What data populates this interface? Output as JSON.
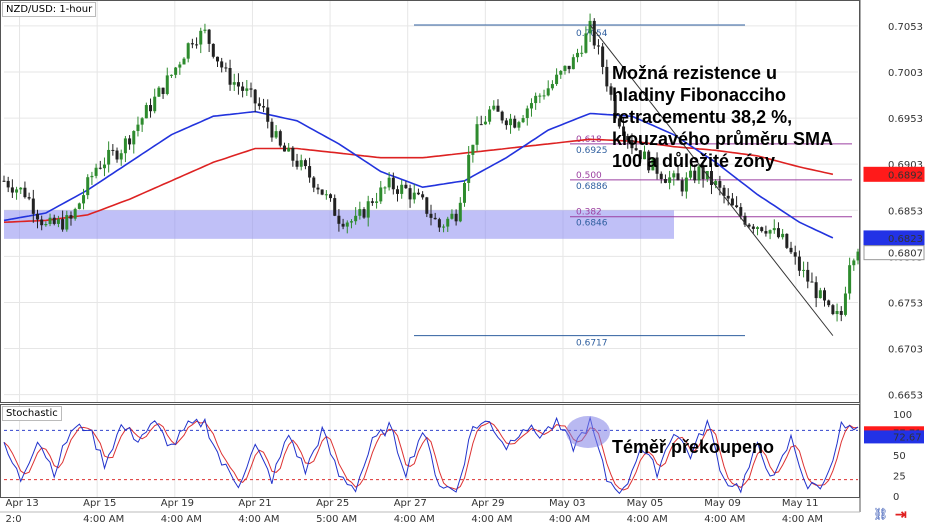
{
  "window": {
    "symbol_title": "NZD/USD: 1-hour",
    "stochastic_title": "Stochastic"
  },
  "annotations": {
    "resistance_lines": [
      "Možná rezistence u",
      "hladiny Fibonacciho",
      "retracementu 38,2 %,",
      "klouzavého průměru SMA",
      "100 a důležité zóny"
    ],
    "overbought": "Téměř překoupeno"
  },
  "colors": {
    "bull": "#2e8b2e",
    "bear": "#222222",
    "sma_blue": "#2233dd",
    "sma_red": "#dd2222",
    "zone": "#8c8cf0",
    "fib": "#2f5f9f",
    "fib_mid": "#9b3fa0",
    "stoch_k": "#2233cc",
    "stoch_d": "#dd3333",
    "price_tag_red": "#ff1a1a",
    "price_tag_blue": "#2232e6"
  },
  "chart_data": [
    {
      "type": "candlestick",
      "title": "NZD/USD: 1-hour",
      "ylim": [
        0.6645,
        0.708
      ],
      "y_ticks": [
        0.6653,
        0.6703,
        0.6753,
        0.6803,
        0.6853,
        0.6903,
        0.6953,
        0.7003,
        0.7053
      ],
      "date_labels": [
        "Apr 13",
        "Apr 15",
        "Apr 19",
        "Apr 21",
        "Apr 25",
        "Apr 27",
        "Apr 29",
        "May 03",
        "May 05",
        "May 09",
        "May 11"
      ],
      "time_labels": [
        "2:0",
        "4:00 AM",
        "4:00 AM",
        "4:00 AM",
        "5:00 AM",
        "4:00 AM",
        "4:00 AM",
        "4:00 AM",
        "4:00 AM",
        "4:00 AM",
        "4:00 AM"
      ],
      "price_path": [
        [
          0,
          0.6885
        ],
        [
          5,
          0.6872
        ],
        [
          10,
          0.6835
        ],
        [
          16,
          0.6842
        ],
        [
          22,
          0.69
        ],
        [
          28,
          0.692
        ],
        [
          34,
          0.696
        ],
        [
          40,
          0.7
        ],
        [
          45,
          0.704
        ],
        [
          48,
          0.7045
        ],
        [
          53,
          0.7
        ],
        [
          58,
          0.698
        ],
        [
          62,
          0.696
        ],
        [
          66,
          0.692
        ],
        [
          70,
          0.6905
        ],
        [
          75,
          0.688
        ],
        [
          80,
          0.6845
        ],
        [
          84,
          0.684
        ],
        [
          88,
          0.6865
        ],
        [
          92,
          0.688
        ],
        [
          96,
          0.6875
        ],
        [
          100,
          0.686
        ],
        [
          104,
          0.6835
        ],
        [
          108,
          0.685
        ],
        [
          112,
          0.693
        ],
        [
          116,
          0.696
        ],
        [
          122,
          0.695
        ],
        [
          126,
          0.697
        ],
        [
          131,
          0.699
        ],
        [
          136,
          0.7015
        ],
        [
          140,
          0.705
        ],
        [
          143,
          0.701
        ],
        [
          146,
          0.696
        ],
        [
          150,
          0.6925
        ],
        [
          154,
          0.6905
        ],
        [
          158,
          0.689
        ],
        [
          162,
          0.688
        ],
        [
          166,
          0.6895
        ],
        [
          170,
          0.688
        ],
        [
          174,
          0.6855
        ],
        [
          178,
          0.684
        ],
        [
          182,
          0.6835
        ],
        [
          186,
          0.682
        ],
        [
          190,
          0.679
        ],
        [
          194,
          0.6765
        ],
        [
          198,
          0.6735
        ],
        [
          200,
          0.674
        ],
        [
          202,
          0.68
        ],
        [
          204,
          0.6815
        ]
      ],
      "sma_100": [
        [
          0,
          0.6842
        ],
        [
          10,
          0.685
        ],
        [
          20,
          0.6875
        ],
        [
          30,
          0.6905
        ],
        [
          40,
          0.6935
        ],
        [
          50,
          0.6955
        ],
        [
          60,
          0.696
        ],
        [
          70,
          0.695
        ],
        [
          80,
          0.6925
        ],
        [
          90,
          0.6895
        ],
        [
          100,
          0.6878
        ],
        [
          110,
          0.6885
        ],
        [
          120,
          0.691
        ],
        [
          130,
          0.694
        ],
        [
          140,
          0.6958
        ],
        [
          150,
          0.6955
        ],
        [
          160,
          0.6935
        ],
        [
          170,
          0.6905
        ],
        [
          180,
          0.687
        ],
        [
          190,
          0.684
        ],
        [
          198,
          0.6823
        ]
      ],
      "sma_200": [
        [
          0,
          0.684
        ],
        [
          10,
          0.6842
        ],
        [
          20,
          0.6848
        ],
        [
          30,
          0.6865
        ],
        [
          40,
          0.6885
        ],
        [
          50,
          0.6905
        ],
        [
          60,
          0.692
        ],
        [
          70,
          0.692
        ],
        [
          80,
          0.6915
        ],
        [
          90,
          0.691
        ],
        [
          100,
          0.691
        ],
        [
          110,
          0.6915
        ],
        [
          120,
          0.692
        ],
        [
          130,
          0.6925
        ],
        [
          140,
          0.693
        ],
        [
          150,
          0.6928
        ],
        [
          160,
          0.6922
        ],
        [
          170,
          0.6918
        ],
        [
          180,
          0.6912
        ],
        [
          190,
          0.69
        ],
        [
          198,
          0.6892
        ]
      ],
      "zone": {
        "low": 0.6822,
        "high": 0.6853
      },
      "fibonacci": [
        {
          "ratio": "",
          "value": "0.7054",
          "price": 0.7054
        },
        {
          "ratio": "0.618",
          "value": "0.6925",
          "price": 0.6925
        },
        {
          "ratio": "0.500",
          "value": "0.6886",
          "price": 0.6886
        },
        {
          "ratio": "0.382",
          "value": "0.6846",
          "price": 0.6846
        },
        {
          "ratio": "",
          "value": "0.6717",
          "price": 0.6717
        }
      ],
      "price_tags": [
        {
          "value": "0.6892",
          "price": 0.6892,
          "style": "red"
        },
        {
          "value": "0.6823",
          "price": 0.6823,
          "style": "blue"
        },
        {
          "value": "0.6807",
          "price": 0.6807,
          "style": "plain"
        }
      ]
    },
    {
      "type": "line",
      "title": "Stochastic",
      "ylim": [
        0,
        100
      ],
      "y_ticks": [
        100,
        75,
        50,
        25,
        0
      ],
      "levels": [
        80,
        20
      ],
      "tags": [
        {
          "value": "77.71",
          "level": 77.71,
          "style": "red"
        },
        {
          "value": "72.67",
          "level": 72.67,
          "style": "blue"
        }
      ],
      "k_anchors": [
        [
          0,
          60
        ],
        [
          4,
          20
        ],
        [
          8,
          70
        ],
        [
          12,
          30
        ],
        [
          16,
          80
        ],
        [
          20,
          85
        ],
        [
          24,
          40
        ],
        [
          28,
          85
        ],
        [
          32,
          70
        ],
        [
          36,
          88
        ],
        [
          40,
          60
        ],
        [
          44,
          85
        ],
        [
          48,
          90
        ],
        [
          52,
          40
        ],
        [
          56,
          15
        ],
        [
          60,
          60
        ],
        [
          64,
          20
        ],
        [
          68,
          75
        ],
        [
          72,
          30
        ],
        [
          76,
          80
        ],
        [
          80,
          25
        ],
        [
          84,
          10
        ],
        [
          88,
          65
        ],
        [
          92,
          85
        ],
        [
          96,
          30
        ],
        [
          100,
          80
        ],
        [
          104,
          15
        ],
        [
          108,
          5
        ],
        [
          112,
          85
        ],
        [
          116,
          90
        ],
        [
          120,
          60
        ],
        [
          124,
          85
        ],
        [
          128,
          75
        ],
        [
          132,
          88
        ],
        [
          136,
          60
        ],
        [
          140,
          90
        ],
        [
          144,
          20
        ],
        [
          148,
          5
        ],
        [
          152,
          60
        ],
        [
          156,
          30
        ],
        [
          160,
          80
        ],
        [
          164,
          50
        ],
        [
          168,
          90
        ],
        [
          172,
          20
        ],
        [
          176,
          10
        ],
        [
          180,
          60
        ],
        [
          184,
          20
        ],
        [
          188,
          70
        ],
        [
          192,
          10
        ],
        [
          196,
          15
        ],
        [
          200,
          85
        ],
        [
          204,
          78
        ]
      ]
    }
  ]
}
